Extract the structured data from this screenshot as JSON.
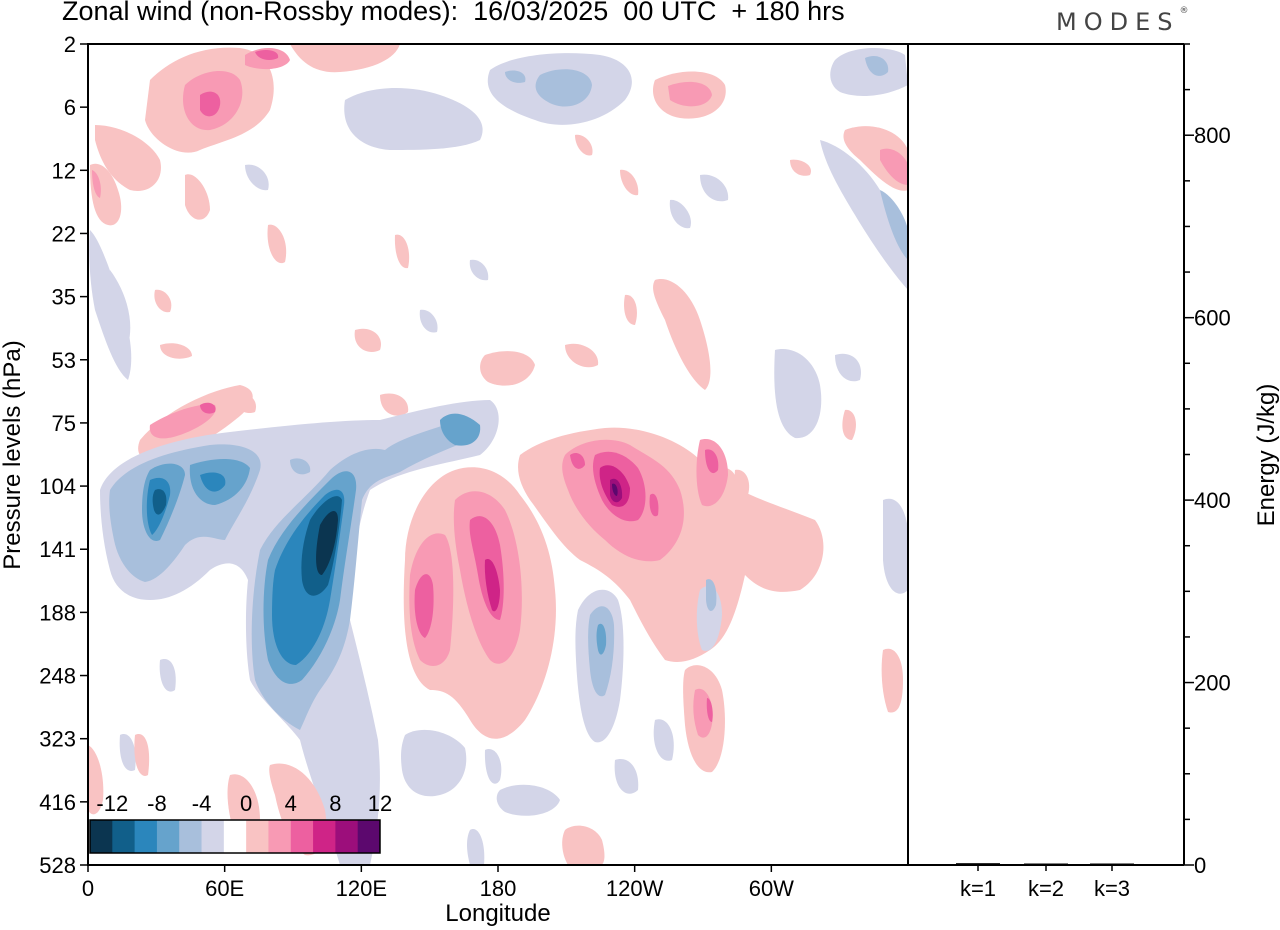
{
  "title": "Zonal wind (non-Rossby modes):  16/03/2025  00 UTC  + 180 hrs",
  "logo": "MODES",
  "logo_mark": "®",
  "chart_data": [
    {
      "type": "heatmap",
      "title": "Zonal wind (non-Rossby modes):  16/03/2025  00 UTC  + 180 hrs",
      "xlabel": "Longitude",
      "ylabel": "Pressure levels (hPa)",
      "x_ticks": [
        "0",
        "60E",
        "120E",
        "180",
        "120W",
        "60W"
      ],
      "x_tick_values": [
        0,
        60,
        120,
        180,
        240,
        300
      ],
      "xlim": [
        0,
        360
      ],
      "y_ticks": [
        "2",
        "6",
        "12",
        "22",
        "35",
        "53",
        "75",
        "104",
        "141",
        "188",
        "248",
        "323",
        "416",
        "528"
      ],
      "colorbar": {
        "labels": [
          "-12",
          "-8",
          "-4",
          "0",
          "4",
          "8",
          "12"
        ],
        "levels": [
          -14,
          -12,
          -10,
          -8,
          -6,
          -4,
          -2,
          2,
          4,
          6,
          8,
          10,
          12,
          14
        ],
        "colors": [
          "#0b3550",
          "#115f8a",
          "#2b86bc",
          "#66a3cc",
          "#a8bfdc",
          "#d3d5e8",
          "#ffffff",
          "#f9c3c3",
          "#f89ab4",
          "#ed60a0",
          "#cf2487",
          "#9c0e7b",
          "#5c086e"
        ]
      },
      "features": [
        {
          "name": "negative core",
          "lon": 105,
          "level": "141",
          "value": -14
        },
        {
          "name": "negative band",
          "lon": 85,
          "level": "188",
          "value": -10
        },
        {
          "name": "negative cluster",
          "lon": 35,
          "level": "104-141",
          "value": -10
        },
        {
          "name": "positive core",
          "lon": 232,
          "level": "104-141",
          "value": 12
        },
        {
          "name": "positive core",
          "lon": 179,
          "level": "141-188",
          "value": 10
        },
        {
          "name": "positive core",
          "lon": 147,
          "level": "188",
          "value": 8
        },
        {
          "name": "positive upper",
          "lon": 55,
          "level": "6",
          "value": 8
        },
        {
          "name": "negative upper",
          "lon": 205,
          "level": "6",
          "value": -6
        }
      ]
    },
    {
      "type": "bar",
      "xlabel": "",
      "ylabel": "Energy (J/kg)",
      "categories": [
        "k=1",
        "k=2",
        "k=3"
      ],
      "values": [
        2,
        1,
        1
      ],
      "ylim": [
        0,
        900
      ],
      "y_ticks": [
        0,
        200,
        400,
        600,
        800
      ]
    }
  ]
}
